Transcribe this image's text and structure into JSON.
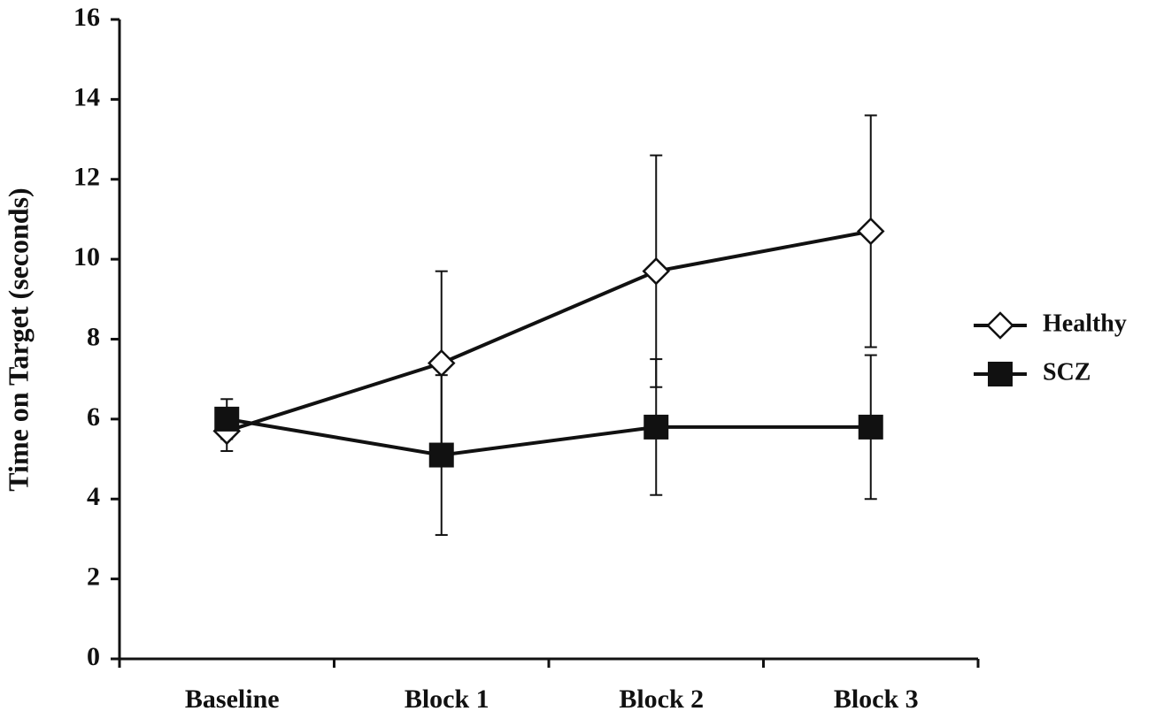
{
  "chart_data": {
    "type": "line",
    "y_label": "Time on Target (seconds)",
    "categories": [
      "Baseline",
      "Block 1",
      "Block 2",
      "Block 3"
    ],
    "series": [
      {
        "name": "Healthy",
        "color": "#111111",
        "marker": "diamond",
        "values": [
          5.7,
          7.4,
          9.7,
          10.7
        ],
        "errors": [
          0.5,
          2.3,
          2.9,
          2.9
        ]
      },
      {
        "name": "SCZ",
        "color": "#111111",
        "marker": "square",
        "values": [
          6.0,
          5.1,
          5.8,
          5.8
        ],
        "errors": [
          0.5,
          2.0,
          1.7,
          1.8
        ]
      }
    ],
    "ylim": [
      0,
      16
    ],
    "yticks": [
      0,
      2,
      4,
      6,
      8,
      10,
      12,
      14,
      16
    ],
    "grid": false,
    "legend": "right"
  }
}
